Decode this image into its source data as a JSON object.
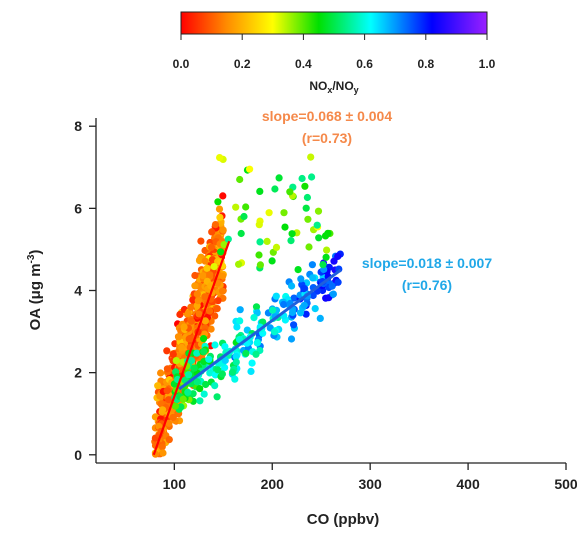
{
  "chart_data": {
    "type": "scatter",
    "title": "",
    "xlabel": "CO (ppbv)",
    "ylabel": "OA (μg m⁻³)",
    "ylabel_parts": {
      "base": "OA (μg m",
      "sup": "-3",
      "close": ")"
    },
    "xlim": [
      20,
      500
    ],
    "ylim": [
      -0.2,
      8.2
    ],
    "x_ticks": [
      100,
      200,
      300,
      400,
      500
    ],
    "x_tick_labels": [
      "100",
      "200",
      "300",
      "400",
      "500"
    ],
    "y_ticks": [
      0,
      2,
      4,
      6,
      8
    ],
    "y_tick_labels": [
      "0",
      "2",
      "4",
      "6",
      "8"
    ],
    "grid": false,
    "colorbar": {
      "label": "NOx/NOy",
      "label_parts": {
        "a": "NO",
        "a_sub": "x",
        "slash": "/NO",
        "b_sub": "y"
      },
      "range": [
        0,
        1
      ],
      "ticks": [
        0.0,
        0.2,
        0.4,
        0.6,
        0.8,
        1.0
      ],
      "tick_labels": [
        "0.0",
        "0.2",
        "0.4",
        "0.6",
        "0.8",
        "1.0"
      ],
      "colormap": "rainbow (red → violet)"
    },
    "fits": [
      {
        "slope_text": "slope=0.068 ± 0.004",
        "r_text": "(r=0.73)",
        "color": "#ff0000",
        "text_color": "#f5894a",
        "x": [
          79,
          156
        ],
        "y": [
          0.0,
          5.2
        ]
      },
      {
        "slope_text": "slope=0.018 ± 0.007",
        "r_text": "(r=0.76)",
        "color": "#1f5fdc",
        "text_color": "#20a8e8",
        "x": [
          105,
          270
        ],
        "y": [
          1.6,
          4.5
        ]
      }
    ],
    "point_groups": [
      {
        "name": "low NOx/NOy cluster (steep branch)",
        "nox_noy_range": [
          0.0,
          0.35
        ],
        "x_range": [
          80,
          150
        ],
        "y_range": [
          0.0,
          7.8
        ]
      },
      {
        "name": "high NOx/NOy cluster (shallow branch)",
        "nox_noy_range": [
          0.35,
          0.9
        ],
        "x_range": [
          100,
          270
        ],
        "y_range": [
          1.0,
          6.3
        ]
      }
    ]
  }
}
